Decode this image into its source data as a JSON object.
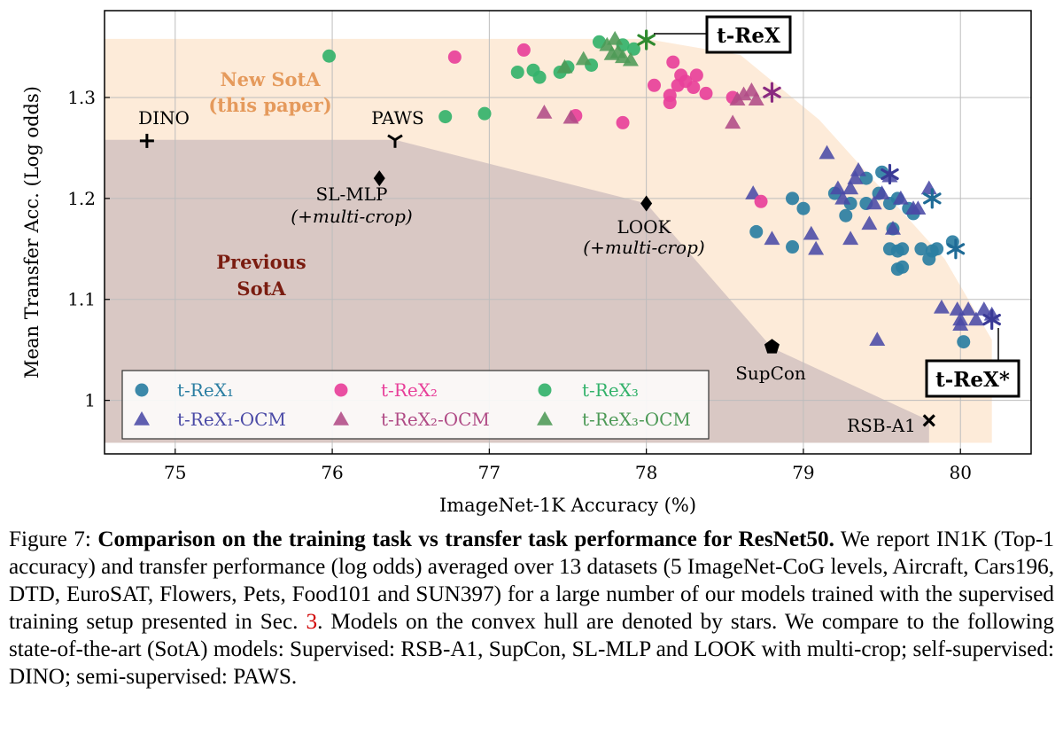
{
  "chart_data": {
    "type": "scatter",
    "xlabel": "ImageNet-1K Accuracy (%)",
    "ylabel": "Mean Transfer Acc. (Log odds)",
    "xlim": [
      74.55,
      80.45
    ],
    "ylim": [
      0.947,
      1.386
    ],
    "xticks": [
      75,
      76,
      77,
      78,
      79,
      80
    ],
    "yticks": [
      1,
      1.1,
      1.2,
      1.3
    ],
    "grid": true,
    "legend_placement": "bottom-left",
    "colors": {
      "trex1": "#2b7ea2",
      "trex1_ocm": "#4a4aa6",
      "trex2": "#e8409a",
      "trex2_ocm": "#b04b86",
      "trex3": "#34b26b",
      "trex3_ocm": "#4d9a57",
      "new_sota_region": "#fdebd9",
      "prev_sota_region": "#d9c8c4",
      "star_trex": "#2f8a2f",
      "star_trex2": "#8a2a80",
      "star_trex1": "#1f6b96",
      "star_ocm1": "#3a3a96"
    },
    "regions": {
      "new_sota": [
        [
          74.55,
          1.358
        ],
        [
          78.0,
          1.358
        ],
        [
          78.6,
          1.342
        ],
        [
          79.1,
          1.278
        ],
        [
          79.9,
          1.14
        ],
        [
          80.05,
          1.1
        ],
        [
          80.2,
          1.06
        ],
        [
          80.2,
          0.958
        ],
        [
          74.55,
          0.958
        ]
      ],
      "previous_sota": [
        [
          74.55,
          1.258
        ],
        [
          76.4,
          1.258
        ],
        [
          78.0,
          1.195
        ],
        [
          78.8,
          1.052
        ],
        [
          79.8,
          0.98
        ],
        [
          79.8,
          0.958
        ],
        [
          74.55,
          0.958
        ]
      ]
    },
    "region_labels": {
      "new_sota_1": "New SotA",
      "new_sota_2": "(this paper)",
      "previous_sota_1": "Previous",
      "previous_sota_2": "SotA"
    },
    "series": [
      {
        "name": "t-ReX₁",
        "marker": "circle",
        "color": "#2b7ea2",
        "points": [
          [
            79.0,
            1.19
          ],
          [
            78.93,
            1.2
          ],
          [
            78.7,
            1.167
          ],
          [
            78.93,
            1.152
          ],
          [
            79.2,
            1.205
          ],
          [
            79.3,
            1.195
          ],
          [
            79.27,
            1.183
          ],
          [
            79.4,
            1.195
          ],
          [
            79.4,
            1.22
          ],
          [
            79.5,
            1.226
          ],
          [
            79.48,
            1.205
          ],
          [
            79.55,
            1.195
          ],
          [
            79.6,
            1.2
          ],
          [
            79.57,
            1.17
          ],
          [
            79.55,
            1.15
          ],
          [
            79.6,
            1.148
          ],
          [
            79.63,
            1.15
          ],
          [
            79.6,
            1.13
          ],
          [
            79.63,
            1.132
          ],
          [
            79.7,
            1.185
          ],
          [
            79.67,
            1.19
          ],
          [
            79.75,
            1.15
          ],
          [
            79.8,
            1.14
          ],
          [
            79.82,
            1.148
          ],
          [
            79.85,
            1.15
          ],
          [
            79.95,
            1.157
          ],
          [
            80.02,
            1.058
          ]
        ]
      },
      {
        "name": "t-ReX₁-OCM",
        "marker": "triangle",
        "color": "#4a4aa6",
        "points": [
          [
            78.68,
            1.205
          ],
          [
            78.8,
            1.16
          ],
          [
            79.05,
            1.165
          ],
          [
            79.08,
            1.15
          ],
          [
            79.15,
            1.245
          ],
          [
            79.22,
            1.21
          ],
          [
            79.25,
            1.2
          ],
          [
            79.3,
            1.21
          ],
          [
            79.33,
            1.22
          ],
          [
            79.35,
            1.228
          ],
          [
            79.3,
            1.16
          ],
          [
            79.42,
            1.175
          ],
          [
            79.45,
            1.195
          ],
          [
            79.5,
            1.205
          ],
          [
            79.55,
            1.222
          ],
          [
            79.57,
            1.17
          ],
          [
            79.62,
            1.2
          ],
          [
            79.7,
            1.19
          ],
          [
            79.73,
            1.19
          ],
          [
            79.8,
            1.21
          ],
          [
            79.47,
            1.06
          ],
          [
            79.88,
            1.092
          ],
          [
            79.98,
            1.09
          ],
          [
            80.0,
            1.075
          ],
          [
            80.05,
            1.09
          ],
          [
            80.1,
            1.08
          ],
          [
            80.15,
            1.09
          ],
          [
            80.2,
            1.085
          ],
          [
            80.0,
            1.08
          ]
        ]
      },
      {
        "name": "t-ReX₂",
        "marker": "circle",
        "color": "#e8409a",
        "points": [
          [
            76.78,
            1.34
          ],
          [
            77.22,
            1.347
          ],
          [
            77.55,
            1.282
          ],
          [
            77.85,
            1.275
          ],
          [
            78.05,
            1.312
          ],
          [
            78.15,
            1.302
          ],
          [
            78.2,
            1.312
          ],
          [
            78.15,
            1.295
          ],
          [
            78.17,
            1.335
          ],
          [
            78.25,
            1.316
          ],
          [
            78.3,
            1.31
          ],
          [
            78.32,
            1.322
          ],
          [
            78.38,
            1.304
          ],
          [
            78.22,
            1.322
          ],
          [
            78.55,
            1.3
          ],
          [
            78.73,
            1.197
          ]
        ]
      },
      {
        "name": "t-ReX₂-OCM",
        "marker": "triangle",
        "color": "#b04b86",
        "points": [
          [
            77.35,
            1.285
          ],
          [
            77.52,
            1.28
          ],
          [
            78.55,
            1.275
          ],
          [
            78.62,
            1.303
          ],
          [
            78.67,
            1.307
          ],
          [
            78.7,
            1.298
          ],
          [
            78.58,
            1.298
          ]
        ]
      },
      {
        "name": "t-ReX₃",
        "marker": "circle",
        "color": "#34b26b",
        "points": [
          [
            75.98,
            1.341
          ],
          [
            76.72,
            1.281
          ],
          [
            76.97,
            1.284
          ],
          [
            77.18,
            1.325
          ],
          [
            77.28,
            1.327
          ],
          [
            77.32,
            1.32
          ],
          [
            77.45,
            1.325
          ],
          [
            77.5,
            1.33
          ],
          [
            77.65,
            1.332
          ],
          [
            77.7,
            1.355
          ],
          [
            77.85,
            1.352
          ],
          [
            77.92,
            1.348
          ]
        ]
      },
      {
        "name": "t-ReX₃-OCM",
        "marker": "triangle",
        "color": "#4d9a57",
        "points": [
          [
            77.48,
            1.33
          ],
          [
            77.6,
            1.338
          ],
          [
            77.75,
            1.352
          ],
          [
            77.78,
            1.343
          ],
          [
            77.8,
            1.358
          ],
          [
            77.82,
            1.345
          ],
          [
            77.85,
            1.34
          ],
          [
            77.9,
            1.337
          ]
        ]
      }
    ],
    "hull_stars": [
      {
        "x": 78.0,
        "y": 1.357,
        "color": "#2f8a2f"
      },
      {
        "x": 78.8,
        "y": 1.305,
        "color": "#8a2a80"
      },
      {
        "x": 79.55,
        "y": 1.224,
        "color": "#3a3a96"
      },
      {
        "x": 79.82,
        "y": 1.2,
        "color": "#1f6b96"
      },
      {
        "x": 79.97,
        "y": 1.15,
        "color": "#1f6b96"
      },
      {
        "x": 80.2,
        "y": 1.08,
        "color": "#3a3a96"
      }
    ],
    "baselines": [
      {
        "name": "DINO",
        "x": 74.82,
        "y": 1.257,
        "marker": "plus"
      },
      {
        "name": "PAWS",
        "x": 76.4,
        "y": 1.258,
        "marker": "tri"
      },
      {
        "name": "SL-MLP",
        "name2": "(+multi-crop)",
        "x": 76.3,
        "y": 1.22,
        "marker": "diamond"
      },
      {
        "name": "LOOK",
        "name2": "(+multi-crop)",
        "x": 78.0,
        "y": 1.195,
        "marker": "diamond"
      },
      {
        "name": "SupCon",
        "x": 78.8,
        "y": 1.053,
        "marker": "pentagon"
      },
      {
        "name": "RSB-A1",
        "x": 79.8,
        "y": 0.98,
        "marker": "x"
      }
    ],
    "callouts": [
      {
        "text": "t-ReX",
        "x": 78.0,
        "y": 1.357
      },
      {
        "text": "t-ReX*",
        "x": 80.2,
        "y": 1.08
      }
    ]
  },
  "caption": {
    "figure_label": "Figure 7:",
    "title": "Comparison on the training task vs transfer task performance for ResNet50.",
    "body_1": "We report IN1K (Top-1 accuracy) and transfer performance (log odds) averaged over 13 datasets (5 ImageNet-CoG levels, Aircraft, Cars196, DTD, EuroSAT, Flowers, Pets, Food101 and SUN397) for a large number of our models trained with the supervised training setup presented in Sec.",
    "section_ref": "3",
    "body_2": ". Models on the convex hull are denoted by stars. We compare to the following state-of-the-art (SotA) models: Supervised: RSB-A1, SupCon, SL-MLP and LOOK with multi-crop; self-supervised: DINO; semi-supervised: PAWS."
  }
}
